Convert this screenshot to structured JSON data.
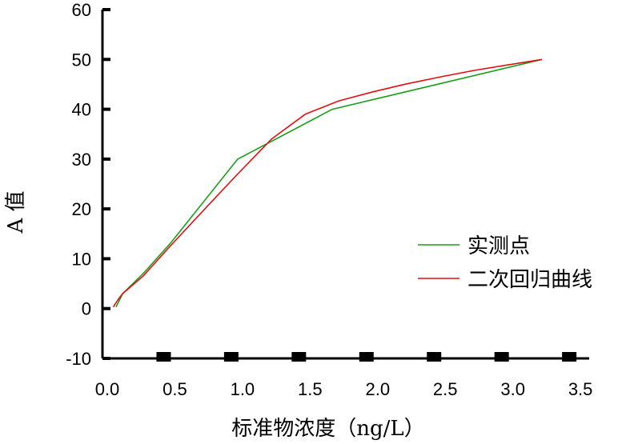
{
  "chart_data": {
    "type": "line",
    "title": "",
    "xlabel": "标准物浓度（ng/L）",
    "ylabel": "A 值",
    "xlim": [
      0.0,
      3.6
    ],
    "ylim": [
      -10,
      60
    ],
    "x_ticks": [
      "0.0",
      "0.5",
      "1.0",
      "1.5",
      "2.0",
      "2.5",
      "3.0",
      "3.5"
    ],
    "y_ticks": [
      "60",
      "50",
      "40",
      "30",
      "20",
      "10",
      "0",
      "-10"
    ],
    "grid": false,
    "legend_position": "right",
    "series": [
      {
        "name": "实测点",
        "color": "#1a9e1a",
        "x": [
          0.1,
          0.15,
          0.3,
          0.5,
          1.0,
          1.7,
          3.25
        ],
        "y": [
          0.3,
          3,
          7,
          13,
          30,
          40,
          50
        ]
      },
      {
        "name": "二次回归曲线",
        "color": "#e01010",
        "x": [
          0.08,
          0.12,
          0.15,
          0.3,
          0.5,
          0.75,
          1.0,
          1.25,
          1.5,
          1.75,
          2.0,
          2.25,
          2.5,
          2.75,
          3.0,
          3.25
        ],
        "y": [
          0.3,
          2,
          3,
          6.5,
          12.5,
          19.8,
          27,
          34,
          39,
          41.7,
          43.5,
          45.1,
          46.5,
          47.8,
          48.9,
          50
        ]
      }
    ]
  }
}
